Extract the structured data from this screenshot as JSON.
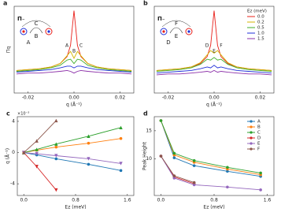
{
  "chart_data": [
    {
      "type": "line",
      "panel": "a",
      "xlabel": "q (Å⁻¹)",
      "ylabel": "Πq",
      "x": [
        -0.025,
        -0.02,
        -0.015,
        -0.01,
        -0.006,
        -0.003,
        -0.0015,
        0,
        0.0015,
        0.003,
        0.006,
        0.01,
        0.015,
        0.02,
        0.025
      ],
      "xlim": [
        -0.026,
        0.026
      ],
      "ylim": [
        0,
        10
      ],
      "xticks": [
        {
          "value": -0.02,
          "label": "-0.02"
        },
        {
          "value": 0,
          "label": "0.00"
        },
        {
          "value": 0.02,
          "label": "0.02"
        }
      ],
      "peak_labels": [
        "A",
        "B",
        "C"
      ],
      "inset": {
        "title": "Π₋",
        "labels": [
          "C",
          "B",
          "A"
        ]
      },
      "series": [
        {
          "name": "0.0",
          "color": "#e8201a",
          "values": [
            2.6,
            2.7,
            2.8,
            3.0,
            3.4,
            4.2,
            5.5,
            9.5,
            5.5,
            4.2,
            3.4,
            3.0,
            2.8,
            2.7,
            2.6
          ]
        },
        {
          "name": "0.2",
          "color": "#d4b500",
          "values": [
            2.6,
            2.7,
            2.8,
            3.0,
            3.4,
            4.3,
            4.8,
            4.0,
            4.8,
            4.3,
            3.4,
            3.0,
            2.8,
            2.7,
            2.6
          ]
        },
        {
          "name": "0.5",
          "color": "#3fae2a",
          "values": [
            2.5,
            2.6,
            2.7,
            2.9,
            3.2,
            3.8,
            3.9,
            3.4,
            3.9,
            3.8,
            3.2,
            2.9,
            2.7,
            2.6,
            2.5
          ]
        },
        {
          "name": "1.0",
          "color": "#1f2fd8",
          "values": [
            2.4,
            2.5,
            2.6,
            2.7,
            2.9,
            3.1,
            3.1,
            2.9,
            3.1,
            3.1,
            2.9,
            2.7,
            2.6,
            2.5,
            2.4
          ]
        },
        {
          "name": "1.5",
          "color": "#8b2fa8",
          "values": [
            2.2,
            2.3,
            2.3,
            2.4,
            2.5,
            2.6,
            2.5,
            2.3,
            2.5,
            2.6,
            2.5,
            2.4,
            2.3,
            2.3,
            2.2
          ]
        }
      ]
    },
    {
      "type": "line",
      "panel": "b",
      "xlabel": "q (Å⁻¹)",
      "legend_title": "Ez (meV)",
      "x": [
        -0.025,
        -0.02,
        -0.015,
        -0.01,
        -0.006,
        -0.003,
        -0.0015,
        0,
        0.0015,
        0.003,
        0.006,
        0.01,
        0.015,
        0.02,
        0.025
      ],
      "xlim": [
        -0.026,
        0.026
      ],
      "ylim": [
        0,
        10
      ],
      "xticks": [
        {
          "value": -0.02,
          "label": "-0.02"
        },
        {
          "value": 0,
          "label": "0.00"
        },
        {
          "value": 0.02,
          "label": "0.02"
        }
      ],
      "peak_labels": [
        "D",
        "E",
        "F"
      ],
      "inset": {
        "title": "Π₋",
        "labels": [
          "F",
          "E",
          "D"
        ]
      },
      "legend": "upper right",
      "series": [
        {
          "name": "0.0",
          "color": "#e8201a",
          "values": [
            2.6,
            2.7,
            2.8,
            3.0,
            3.4,
            4.2,
            5.5,
            9.5,
            5.5,
            4.2,
            3.4,
            3.0,
            2.8,
            2.7,
            2.6
          ]
        },
        {
          "name": "0.2",
          "color": "#d4b500",
          "values": [
            2.6,
            2.7,
            2.8,
            3.0,
            3.5,
            4.4,
            4.9,
            4.6,
            4.9,
            4.4,
            3.5,
            3.0,
            2.8,
            2.7,
            2.6
          ]
        },
        {
          "name": "0.5",
          "color": "#3fae2a",
          "values": [
            2.5,
            2.6,
            2.7,
            2.9,
            3.3,
            3.9,
            3.8,
            4.1,
            3.8,
            3.9,
            3.3,
            2.9,
            2.7,
            2.6,
            2.5
          ]
        },
        {
          "name": "1.0",
          "color": "#1f2fd8",
          "values": [
            2.3,
            2.4,
            2.5,
            2.6,
            2.8,
            3.0,
            2.9,
            3.2,
            2.9,
            3.0,
            2.8,
            2.6,
            2.5,
            2.4,
            2.3
          ]
        },
        {
          "name": "1.5",
          "color": "#8b2fa8",
          "values": [
            2.1,
            2.2,
            2.2,
            2.3,
            2.4,
            2.5,
            2.4,
            2.6,
            2.4,
            2.5,
            2.4,
            2.3,
            2.2,
            2.2,
            2.1
          ]
        }
      ]
    },
    {
      "type": "line",
      "panel": "c",
      "xlabel": "Ez (meV)",
      "ylabel": "q (Å⁻¹)",
      "multiplier": "×10⁻³",
      "x": [
        0,
        0.2,
        0.5,
        1.0,
        1.5
      ],
      "xlim": [
        -0.1,
        1.7
      ],
      "ylim": [
        -5.5,
        4.6
      ],
      "xticks": [
        {
          "value": 0,
          "label": "0.0"
        },
        0.8,
        1.6
      ],
      "yticks": [
        -4,
        0,
        4
      ],
      "series": [
        {
          "name": "A",
          "color": "#1f77b4",
          "marker": "circle",
          "values": [
            0,
            -0.3,
            -0.8,
            -1.5,
            -2.3
          ]
        },
        {
          "name": "B",
          "color": "#ff7f0e",
          "marker": "circle",
          "values": [
            0,
            0.3,
            0.7,
            1.2,
            1.8
          ]
        },
        {
          "name": "C",
          "color": "#2ca02c",
          "marker": "triangle-up",
          "values": [
            0,
            0.4,
            1.1,
            2.1,
            3.2
          ]
        },
        {
          "name": "D",
          "color": "#d62728",
          "marker": "triangle-down",
          "values": [
            0,
            -1.8,
            -4.8,
            null,
            null
          ]
        },
        {
          "name": "E",
          "color": "#9467bd",
          "marker": "triangle-down",
          "values": [
            0,
            -0.15,
            -0.4,
            -0.8,
            -1.4
          ]
        },
        {
          "name": "F",
          "color": "#8c564b",
          "marker": "triangle-up",
          "values": [
            0,
            1.5,
            4.1,
            null,
            null
          ]
        }
      ]
    },
    {
      "type": "line",
      "panel": "d",
      "xlabel": "Ez (meV)",
      "ylabel": "Peak Height",
      "legend": "upper right",
      "x": [
        0,
        0.2,
        0.5,
        1.0,
        1.5
      ],
      "xlim": [
        -0.1,
        1.7
      ],
      "ylim": [
        3.5,
        17.5
      ],
      "xticks": [
        {
          "value": 0,
          "label": "0.0"
        },
        0.8,
        1.6
      ],
      "yticks": [
        10,
        15
      ],
      "series": [
        {
          "name": "A",
          "color": "#1f77b4",
          "marker": "circle",
          "values": [
            16.8,
            10.2,
            8.8,
            7.8,
            6.9
          ]
        },
        {
          "name": "B",
          "color": "#ff7f0e",
          "marker": "circle",
          "values": [
            16.8,
            10.7,
            9.4,
            8.2,
            7.2
          ]
        },
        {
          "name": "C",
          "color": "#2ca02c",
          "marker": "circle",
          "values": [
            16.8,
            11.0,
            9.7,
            8.5,
            7.5
          ]
        },
        {
          "name": "D",
          "color": "#d62728",
          "marker": "circle",
          "values": [
            10.5,
            6.8,
            5.6,
            null,
            null
          ]
        },
        {
          "name": "E",
          "color": "#9467bd",
          "marker": "circle",
          "values": [
            10.5,
            6.6,
            5.4,
            5.0,
            4.5
          ]
        },
        {
          "name": "F",
          "color": "#8c564b",
          "marker": "circle",
          "values": [
            10.5,
            7.0,
            5.8,
            null,
            null
          ]
        }
      ]
    }
  ]
}
